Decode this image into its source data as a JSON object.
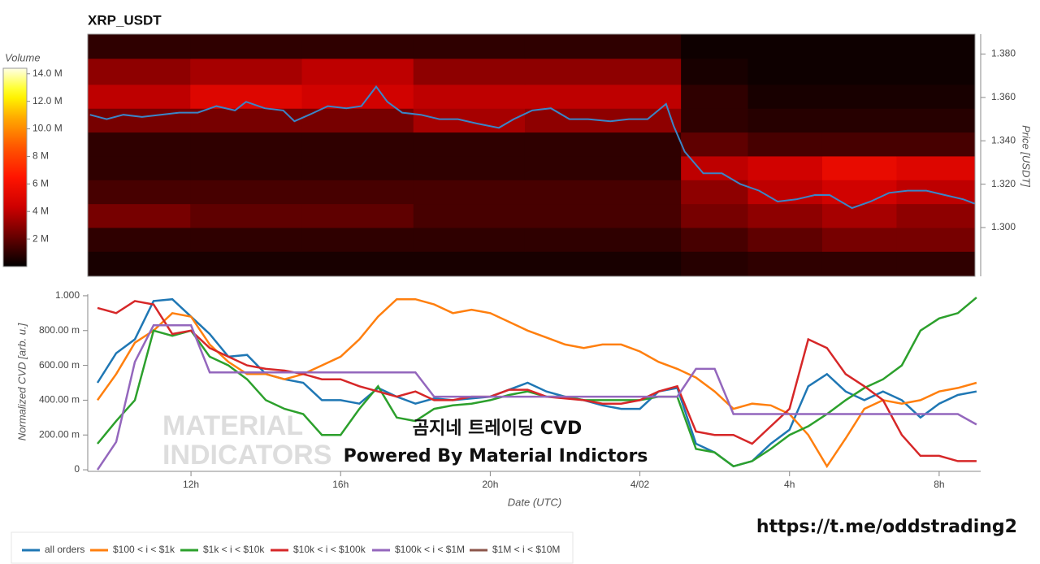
{
  "chart_data": [
    {
      "type": "heatmap",
      "title": "XRP_USDT",
      "y_label": "Price [USDT]",
      "colormap": "hot",
      "x_bins": [
        9.24,
        12,
        15,
        18,
        21,
        25.2,
        27,
        29,
        31,
        33.11
      ],
      "y_bins": [
        1.2775,
        1.289,
        1.3,
        1.311,
        1.322,
        1.333,
        1.344,
        1.355,
        1.366,
        1.378,
        1.3892
      ],
      "values": [
        [
          0.5,
          0.5,
          0.5,
          0.5,
          0.5,
          0.8,
          1,
          1,
          1
        ],
        [
          1,
          1,
          1,
          1,
          1,
          1.5,
          2,
          2.5,
          2.5
        ],
        [
          2.5,
          2,
          2,
          1.5,
          1.5,
          2.5,
          3,
          3.5,
          3
        ],
        [
          1.5,
          1.5,
          1.5,
          1.5,
          1.5,
          3,
          4,
          4.5,
          4
        ],
        [
          1,
          1,
          1,
          1,
          1,
          4,
          4.5,
          5.5,
          5
        ],
        [
          1,
          1,
          1,
          1,
          1,
          2,
          1.5,
          1.5,
          1.5
        ],
        [
          2.5,
          2.5,
          2.5,
          3.5,
          3,
          1,
          0.8,
          0.8,
          0.8
        ],
        [
          4,
          5,
          4.5,
          4,
          4,
          1,
          0.5,
          0.5,
          0.5
        ],
        [
          3,
          3.5,
          4,
          3,
          3,
          0.5,
          0.3,
          0.3,
          0.3
        ],
        [
          1,
          1,
          1,
          1,
          1,
          0.3,
          0.3,
          0.3,
          0.3
        ]
      ],
      "xlim": [
        9.24,
        33.11
      ],
      "ylim": [
        1.2775,
        1.3892
      ],
      "yticks": [
        {
          "value": 1.3,
          "label": "1.300"
        },
        {
          "value": 1.32,
          "label": "1.320"
        },
        {
          "value": 1.34,
          "label": "1.340"
        },
        {
          "value": 1.36,
          "label": "1.360"
        },
        {
          "value": 1.38,
          "label": "1.380"
        }
      ],
      "colorbar": {
        "label": "Volume",
        "lim": [
          0,
          14.4
        ],
        "ticks": [
          {
            "value": 2,
            "label": "2 M"
          },
          {
            "value": 4,
            "label": "4 M"
          },
          {
            "value": 6,
            "label": "6 M"
          },
          {
            "value": 8,
            "label": "8 M"
          },
          {
            "value": 10,
            "label": "10.0 M"
          },
          {
            "value": 12,
            "label": "12.0 M"
          },
          {
            "value": 14,
            "label": "14.0 M"
          }
        ]
      },
      "price": {
        "color": "#3a86c8",
        "x": [
          9.3,
          9.75,
          10.2,
          10.7,
          11.2,
          11.7,
          12.2,
          12.7,
          13.2,
          13.5,
          14.0,
          14.5,
          14.8,
          15.2,
          15.7,
          16.2,
          16.6,
          17.0,
          17.3,
          17.7,
          18.2,
          18.7,
          19.2,
          19.7,
          20.3,
          20.7,
          21.2,
          21.7,
          22.2,
          22.7,
          23.3,
          23.8,
          24.3,
          24.8,
          25.0,
          25.3,
          25.8,
          26.3,
          26.8,
          27.3,
          27.8,
          28.3,
          28.8,
          29.2,
          29.8,
          30.3,
          30.8,
          31.3,
          31.8,
          32.3,
          32.8,
          33.1
        ],
        "values": [
          1.352,
          1.35,
          1.352,
          1.351,
          1.352,
          1.353,
          1.353,
          1.356,
          1.354,
          1.358,
          1.355,
          1.354,
          1.349,
          1.352,
          1.356,
          1.355,
          1.356,
          1.365,
          1.358,
          1.353,
          1.352,
          1.35,
          1.35,
          1.348,
          1.346,
          1.35,
          1.354,
          1.355,
          1.35,
          1.35,
          1.349,
          1.35,
          1.35,
          1.357,
          1.347,
          1.335,
          1.325,
          1.325,
          1.32,
          1.317,
          1.312,
          1.313,
          1.315,
          1.315,
          1.309,
          1.312,
          1.316,
          1.317,
          1.317,
          1.315,
          1.313,
          1.311
        ]
      }
    },
    {
      "type": "line",
      "x_label": "Date (UTC)",
      "y_label": "Normalized CVD [arb. u.]",
      "legend": "bottom",
      "grid": false,
      "annotations": [
        "곰지네 트레이딩 CVD",
        "Powered By Material Indictors"
      ],
      "xlim": [
        9.24,
        33.11
      ],
      "ylim": [
        -0.009,
        1.009
      ],
      "xticks": [
        {
          "value": 12,
          "label": "12h"
        },
        {
          "value": 16,
          "label": "16h"
        },
        {
          "value": 20,
          "label": "20h"
        },
        {
          "value": 24,
          "label": "4/02"
        },
        {
          "value": 28,
          "label": "4h"
        },
        {
          "value": 32,
          "label": "8h"
        }
      ],
      "yticks": [
        0,
        {
          "value": 0.2,
          "label": "200.00 m"
        },
        {
          "value": 0.4,
          "label": "400.00 m"
        },
        {
          "value": 0.6,
          "label": "600.00 m"
        },
        {
          "value": 0.8,
          "label": "800.00 m"
        },
        {
          "value": 1,
          "label": "1.000"
        }
      ],
      "x": [
        9.5,
        10,
        10.5,
        11,
        11.5,
        12,
        12.5,
        13,
        13.5,
        14,
        14.5,
        15,
        15.5,
        16,
        16.5,
        17,
        17.5,
        18,
        18.5,
        19,
        19.5,
        20,
        20.5,
        21,
        21.5,
        22,
        22.5,
        23,
        23.5,
        24,
        24.5,
        25,
        25.5,
        26,
        26.5,
        27,
        27.5,
        28,
        28.5,
        29,
        29.5,
        30,
        30.5,
        31,
        31.5,
        32,
        32.5,
        33
      ],
      "series": [
        {
          "name": "all orders",
          "color": "#1f77b4",
          "values": [
            0.5,
            0.67,
            0.75,
            0.97,
            0.98,
            0.88,
            0.78,
            0.65,
            0.66,
            0.55,
            0.52,
            0.5,
            0.4,
            0.4,
            0.38,
            0.47,
            0.42,
            0.38,
            0.41,
            0.4,
            0.41,
            0.42,
            0.46,
            0.5,
            0.45,
            0.42,
            0.4,
            0.37,
            0.35,
            0.35,
            0.45,
            0.47,
            0.15,
            0.1,
            0.02,
            0.05,
            0.15,
            0.23,
            0.48,
            0.55,
            0.45,
            0.4,
            0.45,
            0.4,
            0.3,
            0.38,
            0.43,
            0.45
          ]
        },
        {
          "name": "$100 < i < $1k",
          "color": "#ff7f0e",
          "values": [
            0.4,
            0.55,
            0.73,
            0.8,
            0.9,
            0.88,
            0.72,
            0.62,
            0.55,
            0.55,
            0.52,
            0.55,
            0.6,
            0.65,
            0.75,
            0.88,
            0.98,
            0.98,
            0.95,
            0.9,
            0.92,
            0.9,
            0.85,
            0.8,
            0.76,
            0.72,
            0.7,
            0.72,
            0.72,
            0.68,
            0.62,
            0.58,
            0.53,
            0.45,
            0.35,
            0.38,
            0.37,
            0.32,
            0.2,
            0.02,
            0.18,
            0.35,
            0.4,
            0.38,
            0.4,
            0.45,
            0.47,
            0.5
          ]
        },
        {
          "name": "$1k < i < $10k",
          "color": "#2ca02c",
          "values": [
            0.15,
            0.28,
            0.4,
            0.8,
            0.77,
            0.8,
            0.65,
            0.6,
            0.52,
            0.4,
            0.35,
            0.32,
            0.2,
            0.2,
            0.35,
            0.48,
            0.3,
            0.28,
            0.35,
            0.37,
            0.38,
            0.4,
            0.43,
            0.45,
            0.42,
            0.42,
            0.4,
            0.4,
            0.4,
            0.4,
            0.42,
            0.42,
            0.12,
            0.1,
            0.02,
            0.05,
            0.12,
            0.2,
            0.25,
            0.32,
            0.4,
            0.47,
            0.52,
            0.6,
            0.8,
            0.87,
            0.9,
            0.99
          ]
        },
        {
          "name": "$10k < i < $100k",
          "color": "#d62728",
          "values": [
            0.93,
            0.9,
            0.97,
            0.95,
            0.78,
            0.8,
            0.7,
            0.65,
            0.6,
            0.58,
            0.57,
            0.55,
            0.52,
            0.52,
            0.48,
            0.45,
            0.42,
            0.45,
            0.4,
            0.4,
            0.42,
            0.42,
            0.46,
            0.46,
            0.42,
            0.41,
            0.4,
            0.38,
            0.38,
            0.4,
            0.45,
            0.48,
            0.22,
            0.2,
            0.2,
            0.15,
            0.25,
            0.35,
            0.75,
            0.7,
            0.55,
            0.48,
            0.4,
            0.2,
            0.08,
            0.08,
            0.05,
            0.05
          ]
        },
        {
          "name": "$100k < i < $1M",
          "color": "#9467bd",
          "values": [
            0,
            0.16,
            0.62,
            0.83,
            0.83,
            0.83,
            0.56,
            0.56,
            0.56,
            0.56,
            0.56,
            0.56,
            0.56,
            0.56,
            0.56,
            0.56,
            0.56,
            0.56,
            0.42,
            0.42,
            0.42,
            0.42,
            0.42,
            0.42,
            0.42,
            0.42,
            0.42,
            0.42,
            0.42,
            0.42,
            0.42,
            0.42,
            0.58,
            0.58,
            0.32,
            0.32,
            0.32,
            0.32,
            0.32,
            0.32,
            0.32,
            0.32,
            0.32,
            0.32,
            0.32,
            0.32,
            0.32,
            0.26
          ]
        },
        {
          "name": "$1M < i < $10M",
          "color": "#8c564b",
          "values": [
            null,
            null,
            null,
            null,
            null,
            null,
            null,
            null,
            null,
            null,
            null,
            null,
            null,
            null,
            null,
            null,
            null,
            null,
            null,
            null,
            null,
            null,
            null,
            null,
            null,
            null,
            null,
            null,
            null,
            null,
            null,
            null,
            null,
            null,
            null,
            null,
            null,
            null,
            null,
            null,
            null,
            null,
            null,
            null,
            null,
            null,
            null,
            null
          ]
        }
      ]
    }
  ],
  "watermark": [
    "MATERIAL",
    "INDICATORS"
  ],
  "link": "https://t.me/oddstrading2"
}
